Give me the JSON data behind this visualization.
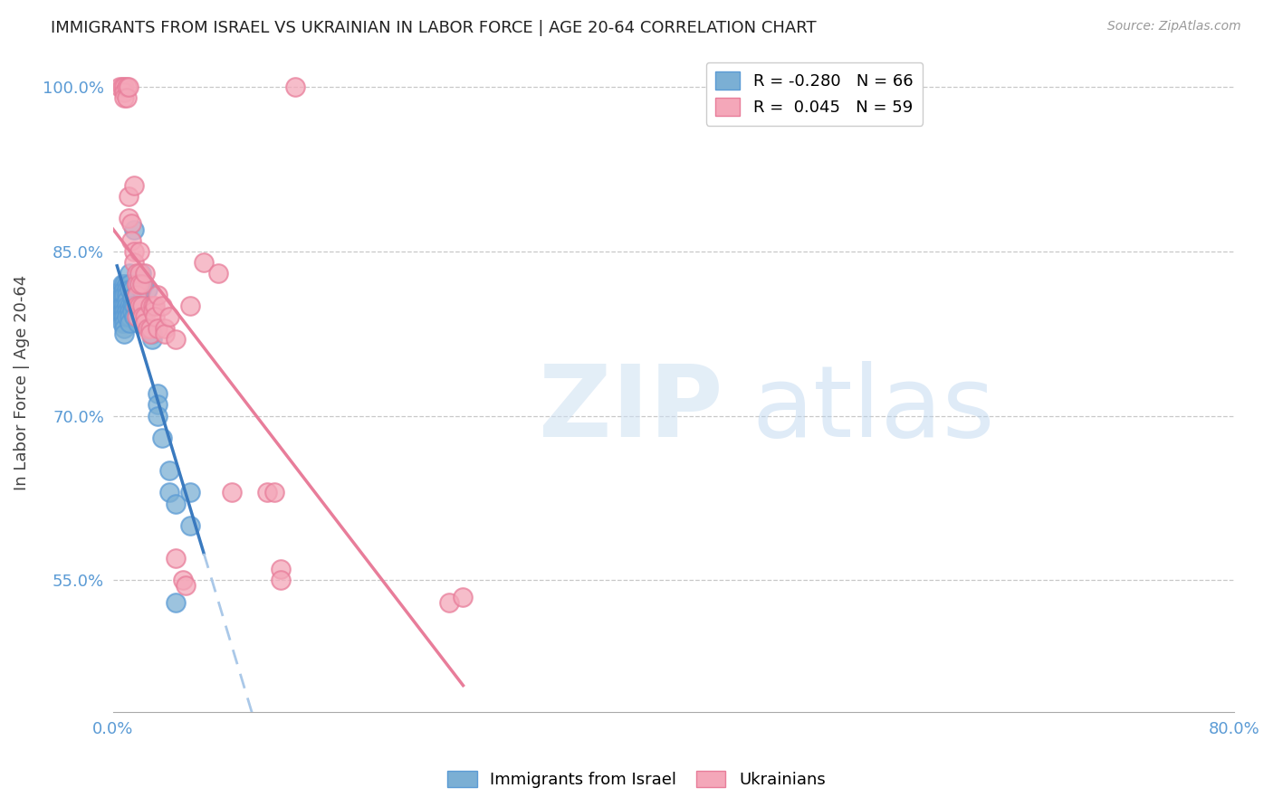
{
  "title": "IMMIGRANTS FROM ISRAEL VS UKRAINIAN IN LABOR FORCE | AGE 20-64 CORRELATION CHART",
  "source": "Source: ZipAtlas.com",
  "ylabel": "In Labor Force | Age 20-64",
  "xlim": [
    0.0,
    80.0
  ],
  "ylim": [
    43.0,
    103.0
  ],
  "yticks": [
    55.0,
    70.0,
    85.0,
    100.0
  ],
  "ytick_labels": [
    "55.0%",
    "70.0%",
    "85.0%",
    "100.0%"
  ],
  "xtick_positions": [
    0.0,
    10.0,
    20.0,
    30.0,
    40.0,
    50.0,
    60.0,
    70.0,
    80.0
  ],
  "xtick_labels": [
    "0.0%",
    "",
    "",
    "",
    "",
    "",
    "",
    "",
    "80.0%"
  ],
  "axis_color": "#5b9bd5",
  "grid_color": "#c8c8c8",
  "legend_entries": [
    {
      "label": "R = -0.280   N = 66",
      "color": "#7bafd4"
    },
    {
      "label": "R =  0.045   N = 59",
      "color": "#f4a7b9"
    }
  ],
  "israel_points": [
    [
      0.3,
      80.0
    ],
    [
      0.5,
      79.5
    ],
    [
      0.5,
      81.0
    ],
    [
      0.6,
      81.5
    ],
    [
      0.6,
      80.5
    ],
    [
      0.6,
      80.0
    ],
    [
      0.6,
      79.5
    ],
    [
      0.7,
      82.0
    ],
    [
      0.7,
      81.0
    ],
    [
      0.7,
      80.0
    ],
    [
      0.7,
      79.5
    ],
    [
      0.7,
      79.0
    ],
    [
      0.7,
      78.5
    ],
    [
      0.8,
      82.0
    ],
    [
      0.8,
      81.5
    ],
    [
      0.8,
      81.0
    ],
    [
      0.8,
      80.0
    ],
    [
      0.8,
      79.5
    ],
    [
      0.8,
      79.0
    ],
    [
      0.8,
      78.5
    ],
    [
      0.8,
      78.0
    ],
    [
      0.8,
      77.5
    ],
    [
      1.0,
      82.0
    ],
    [
      1.0,
      81.5
    ],
    [
      1.0,
      81.0
    ],
    [
      1.0,
      80.5
    ],
    [
      1.0,
      80.0
    ],
    [
      1.0,
      79.5
    ],
    [
      1.0,
      79.0
    ],
    [
      1.2,
      83.0
    ],
    [
      1.2,
      82.0
    ],
    [
      1.2,
      81.5
    ],
    [
      1.2,
      80.0
    ],
    [
      1.2,
      79.5
    ],
    [
      1.2,
      79.0
    ],
    [
      1.2,
      78.5
    ],
    [
      1.4,
      81.5
    ],
    [
      1.4,
      80.8
    ],
    [
      1.4,
      80.0
    ],
    [
      1.4,
      79.5
    ],
    [
      1.5,
      87.0
    ],
    [
      1.5,
      80.0
    ],
    [
      1.5,
      79.0
    ],
    [
      1.8,
      82.0
    ],
    [
      1.8,
      79.5
    ],
    [
      1.8,
      79.0
    ],
    [
      1.8,
      78.5
    ],
    [
      2.0,
      83.0
    ],
    [
      2.0,
      81.5
    ],
    [
      2.0,
      79.0
    ],
    [
      2.2,
      82.0
    ],
    [
      2.2,
      80.0
    ],
    [
      2.5,
      81.5
    ],
    [
      2.5,
      80.0
    ],
    [
      2.8,
      77.5
    ],
    [
      2.8,
      77.0
    ],
    [
      3.2,
      72.0
    ],
    [
      3.2,
      71.0
    ],
    [
      3.2,
      70.0
    ],
    [
      3.5,
      68.0
    ],
    [
      4.0,
      65.0
    ],
    [
      4.0,
      63.0
    ],
    [
      4.5,
      62.0
    ],
    [
      4.5,
      53.0
    ],
    [
      5.5,
      60.0
    ],
    [
      5.5,
      63.0
    ]
  ],
  "ukraine_points": [
    [
      0.5,
      100.0
    ],
    [
      0.7,
      100.0
    ],
    [
      0.8,
      100.0
    ],
    [
      0.8,
      99.5
    ],
    [
      0.8,
      99.0
    ],
    [
      1.0,
      100.0
    ],
    [
      1.0,
      99.0
    ],
    [
      1.1,
      100.0
    ],
    [
      1.1,
      90.0
    ],
    [
      1.1,
      88.0
    ],
    [
      1.3,
      87.5
    ],
    [
      1.3,
      86.0
    ],
    [
      1.5,
      91.0
    ],
    [
      1.5,
      85.0
    ],
    [
      1.5,
      84.0
    ],
    [
      1.7,
      83.0
    ],
    [
      1.7,
      82.0
    ],
    [
      1.7,
      81.0
    ],
    [
      1.7,
      80.0
    ],
    [
      1.7,
      79.0
    ],
    [
      1.9,
      85.0
    ],
    [
      1.9,
      83.0
    ],
    [
      1.9,
      82.0
    ],
    [
      1.9,
      80.0
    ],
    [
      2.1,
      82.0
    ],
    [
      2.1,
      80.0
    ],
    [
      2.1,
      79.0
    ],
    [
      2.3,
      83.0
    ],
    [
      2.3,
      79.0
    ],
    [
      2.3,
      78.5
    ],
    [
      2.5,
      78.0
    ],
    [
      2.7,
      80.0
    ],
    [
      2.7,
      78.0
    ],
    [
      2.7,
      77.5
    ],
    [
      2.9,
      80.0
    ],
    [
      2.9,
      79.5
    ],
    [
      3.0,
      80.0
    ],
    [
      3.0,
      79.0
    ],
    [
      3.2,
      81.0
    ],
    [
      3.2,
      78.0
    ],
    [
      3.5,
      80.0
    ],
    [
      3.7,
      78.0
    ],
    [
      3.7,
      77.5
    ],
    [
      4.0,
      79.0
    ],
    [
      4.5,
      77.0
    ],
    [
      5.5,
      80.0
    ],
    [
      6.5,
      84.0
    ],
    [
      7.5,
      83.0
    ],
    [
      11.0,
      63.0
    ],
    [
      11.5,
      63.0
    ],
    [
      12.0,
      56.0
    ],
    [
      12.0,
      55.0
    ],
    [
      13.0,
      100.0
    ],
    [
      24.0,
      53.0
    ],
    [
      25.0,
      53.5
    ],
    [
      4.5,
      57.0
    ],
    [
      5.0,
      55.0
    ],
    [
      5.2,
      54.5
    ],
    [
      8.5,
      63.0
    ]
  ],
  "israel_color": "#7bafd4",
  "ukraine_color": "#f4a7b9",
  "israel_edge_color": "#5b9bd5",
  "ukraine_edge_color": "#e87d9a",
  "trend_blue_color": "#3a7abf",
  "trend_pink_color": "#e87d9a",
  "trend_dashed_color": "#aac8e8",
  "background_color": "#ffffff",
  "israel_trend_x_end": 6.5,
  "ukraine_trend_x_start": 0.0,
  "dashed_x_start": 6.5,
  "dashed_x_end": 80.0
}
